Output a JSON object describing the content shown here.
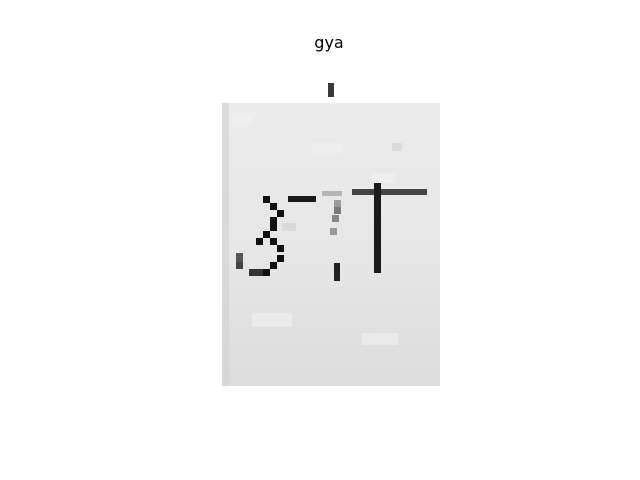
{
  "figure": {
    "title": "gya"
  }
}
